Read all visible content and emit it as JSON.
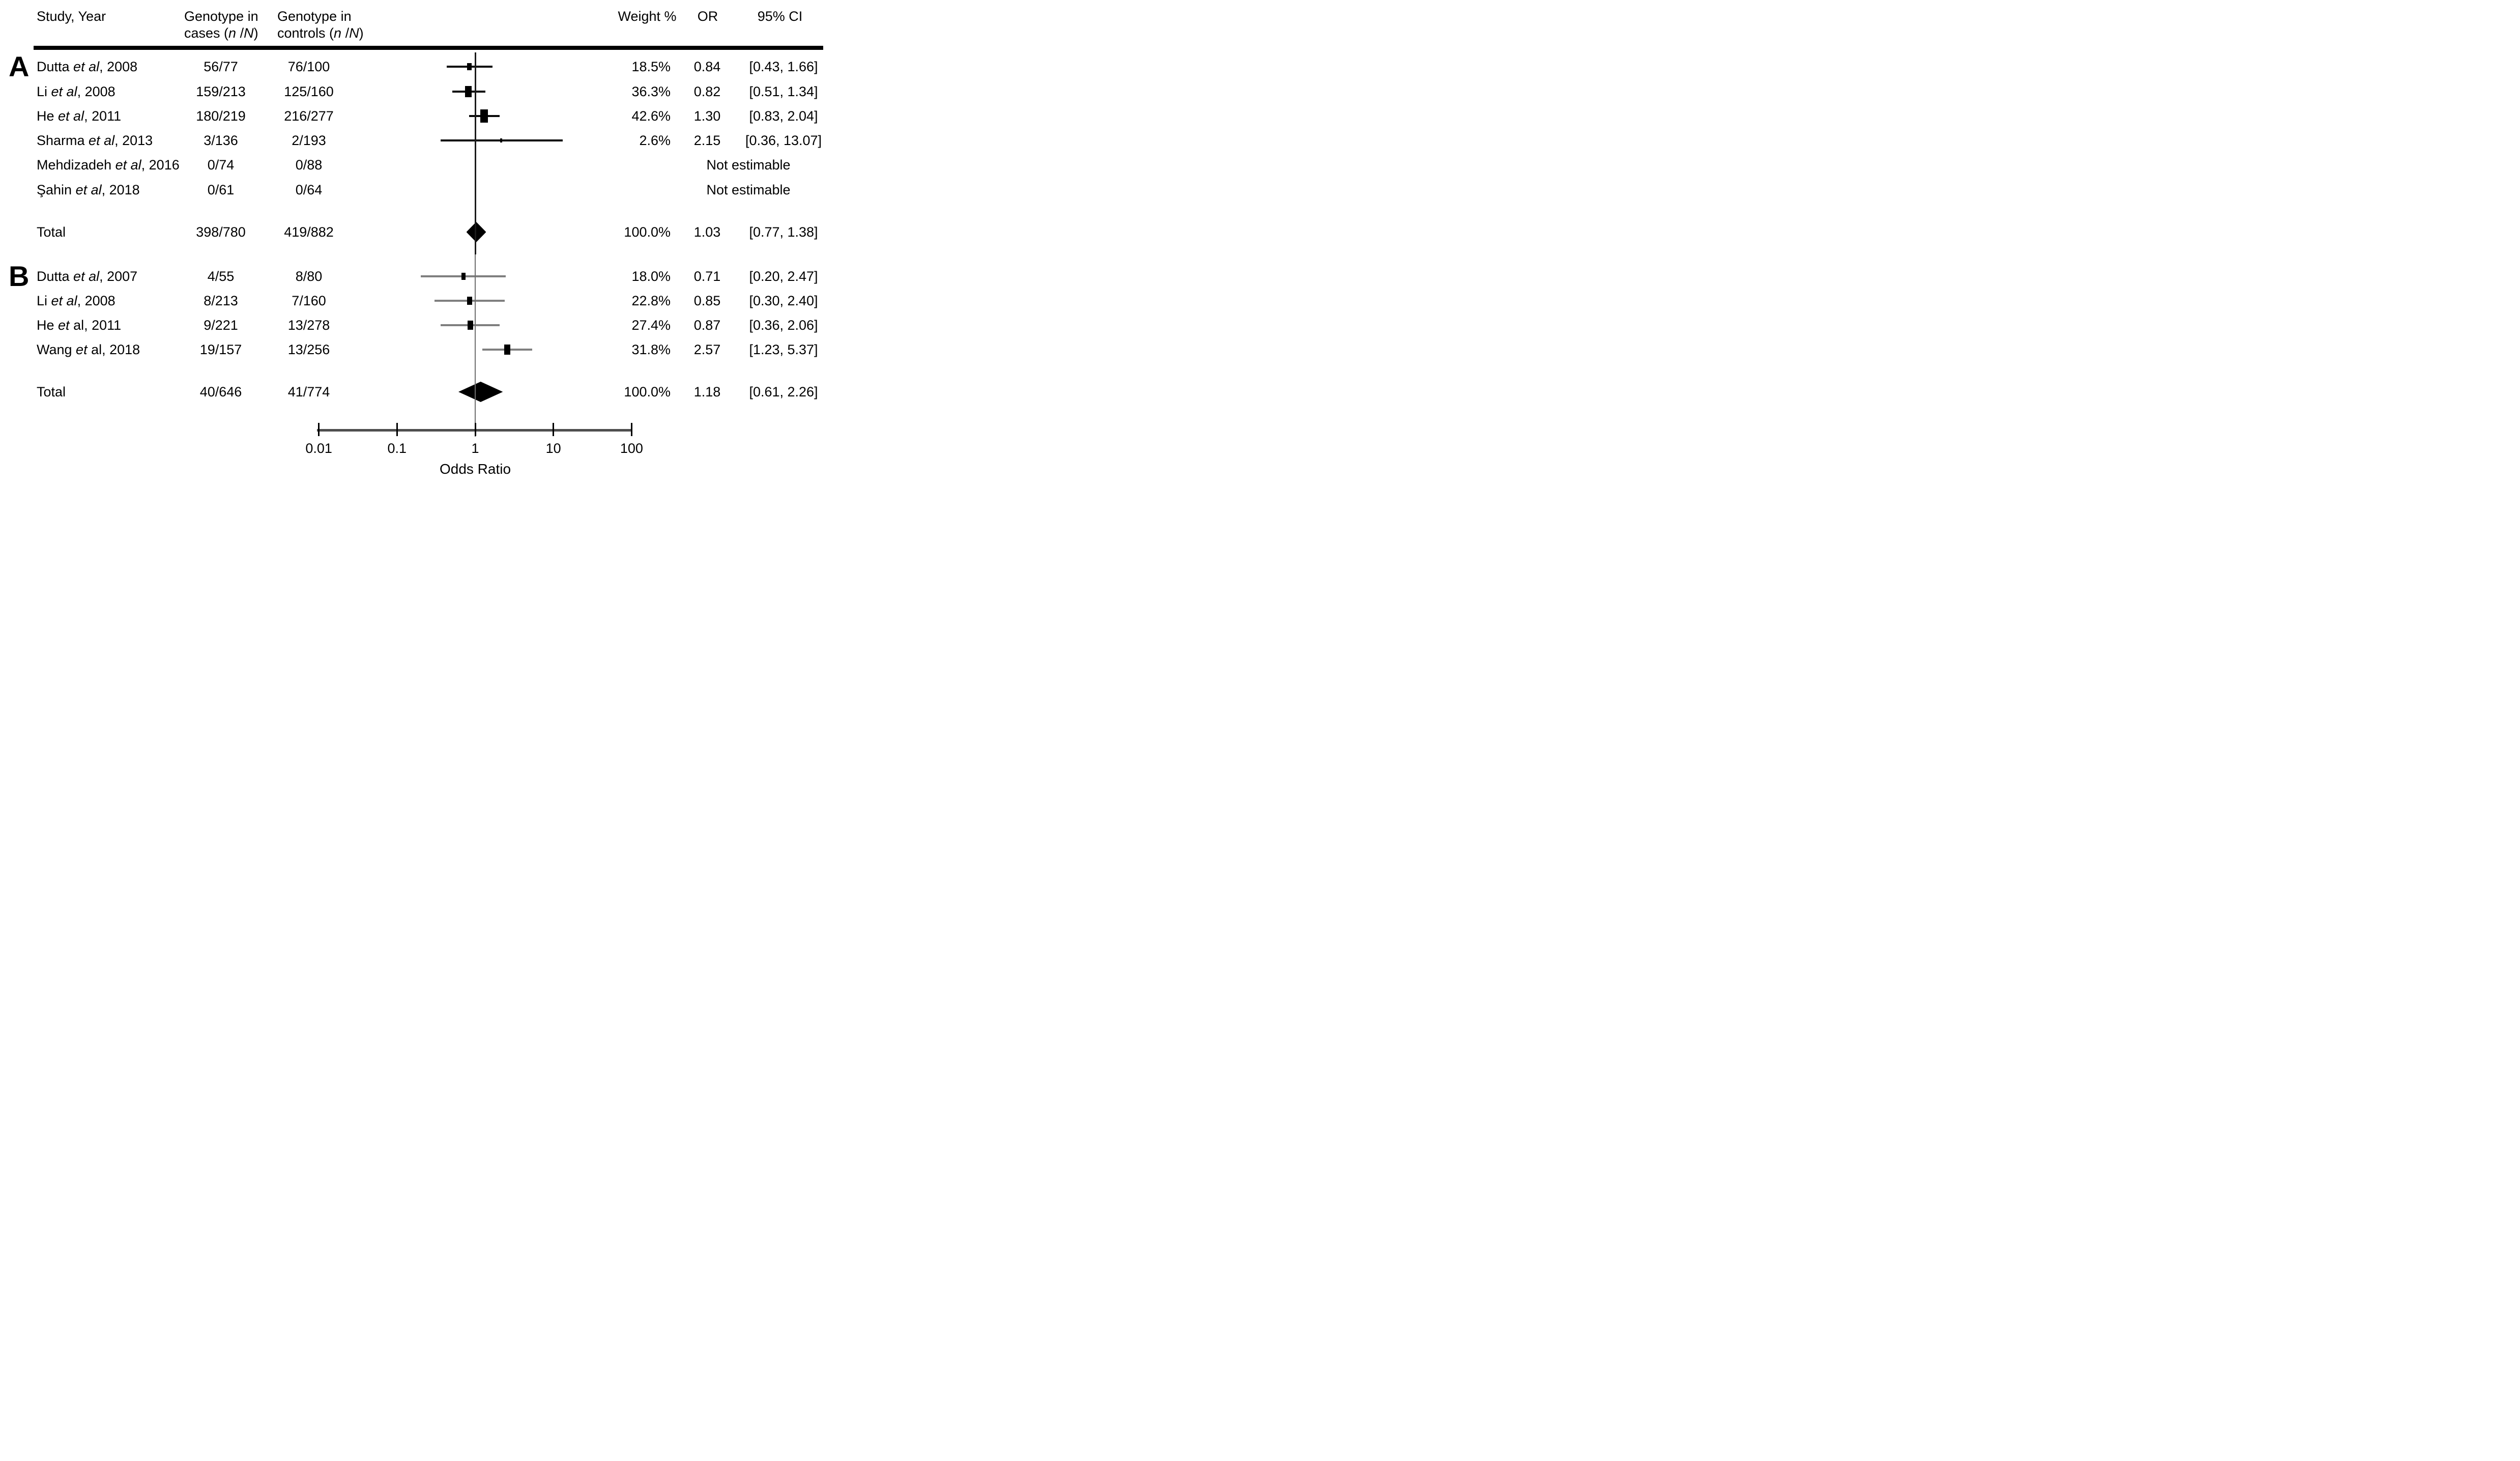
{
  "chart_data": {
    "type": "forest_plot",
    "title": "",
    "xlabel": "Odds Ratio",
    "axis": {
      "scale": "log10",
      "min": 0.01,
      "max": 100,
      "ticks": [
        0.01,
        0.1,
        1,
        10,
        100
      ],
      "tick_labels": [
        "0.01",
        "0.1",
        "1",
        "10",
        "100"
      ],
      "no_effect_line": 1
    },
    "header": {
      "study": "Study, Year",
      "cases_line1": [
        {
          "t": "Genotype in"
        }
      ],
      "cases_line2": [
        {
          "t": "cases ("
        },
        {
          "t": "n",
          "i": true
        },
        {
          "t": " /"
        },
        {
          "t": "N",
          "i": true
        },
        {
          "t": ")"
        }
      ],
      "controls_line1": [
        {
          "t": "Genotype in"
        }
      ],
      "controls_line2": [
        {
          "t": "controls ("
        },
        {
          "t": "n",
          "i": true
        },
        {
          "t": " /"
        },
        {
          "t": "N",
          "i": true
        },
        {
          "t": ")"
        }
      ],
      "weight": "Weight %",
      "or": "OR",
      "ci": "95% CI"
    },
    "sections": [
      {
        "label": "A",
        "rows": [
          {
            "study": [
              {
                "t": "Dutta "
              },
              {
                "t": "et al",
                "i": true
              },
              {
                "t": ", 2008"
              }
            ],
            "cases": "56/77",
            "controls": "76/100",
            "weight": "18.5%",
            "weight_val": 18.5,
            "or_text": "0.84",
            "ci_text": "[0.43, 1.66]",
            "or": 0.84,
            "lo": 0.43,
            "hi": 1.66
          },
          {
            "study": [
              {
                "t": "Li "
              },
              {
                "t": "et al",
                "i": true
              },
              {
                "t": ", 2008"
              }
            ],
            "cases": "159/213",
            "controls": "125/160",
            "weight": "36.3%",
            "weight_val": 36.3,
            "or_text": "0.82",
            "ci_text": "[0.51, 1.34]",
            "or": 0.82,
            "lo": 0.51,
            "hi": 1.34
          },
          {
            "study": [
              {
                "t": "He "
              },
              {
                "t": "et al",
                "i": true
              },
              {
                "t": ", 2011"
              }
            ],
            "cases": "180/219",
            "controls": "216/277",
            "weight": "42.6%",
            "weight_val": 42.6,
            "or_text": "1.30",
            "ci_text": "[0.83, 2.04]",
            "or": 1.3,
            "lo": 0.83,
            "hi": 2.04
          },
          {
            "study": [
              {
                "t": "Sharma "
              },
              {
                "t": "et al",
                "i": true
              },
              {
                "t": ", 2013"
              }
            ],
            "cases": "3/136",
            "controls": "2/193",
            "weight": "2.6%",
            "weight_val": 2.6,
            "or_text": "2.15",
            "ci_text": "[0.36,  13.07]",
            "or": 2.15,
            "lo": 0.36,
            "hi": 13.07
          },
          {
            "study": [
              {
                "t": "Mehdizadeh "
              },
              {
                "t": "et al",
                "i": true
              },
              {
                "t": ", 2016"
              }
            ],
            "cases": "0/74",
            "controls": "0/88",
            "note": "Not estimable"
          },
          {
            "study": [
              {
                "t": "Şahin "
              },
              {
                "t": "et al",
                "i": true
              },
              {
                "t": ", 2018"
              }
            ],
            "cases": "0/61",
            "controls": "0/64",
            "note": "Not estimable"
          }
        ],
        "total": {
          "label": "Total",
          "cases": "398/780",
          "controls": "419/882",
          "weight": "100.0%",
          "or_text": "1.03",
          "ci_text": "[0.77, 1.38]",
          "or": 1.03,
          "lo": 0.77,
          "hi": 1.38
        }
      },
      {
        "label": "B",
        "rows": [
          {
            "study": [
              {
                "t": "Dutta "
              },
              {
                "t": "et al",
                "i": true
              },
              {
                "t": ", 2007"
              }
            ],
            "cases": "4/55",
            "controls": "8/80",
            "weight": "18.0%",
            "weight_val": 18.0,
            "or_text": "0.71",
            "ci_text": "[0.20, 2.47]",
            "or": 0.71,
            "lo": 0.2,
            "hi": 2.47
          },
          {
            "study": [
              {
                "t": "Li "
              },
              {
                "t": "et al",
                "i": true
              },
              {
                "t": ", 2008"
              }
            ],
            "cases": "8/213",
            "controls": "7/160",
            "weight": "22.8%",
            "weight_val": 22.8,
            "or_text": "0.85",
            "ci_text": "[0.30, 2.40]",
            "or": 0.85,
            "lo": 0.3,
            "hi": 2.4
          },
          {
            "study": [
              {
                "t": "He "
              },
              {
                "t": "et",
                "i": true
              },
              {
                "t": " al, 2011"
              }
            ],
            "cases": "9/221",
            "controls": "13/278",
            "weight": "27.4%",
            "weight_val": 27.4,
            "or_text": "0.87",
            "ci_text": "[0.36, 2.06]",
            "or": 0.87,
            "lo": 0.36,
            "hi": 2.06
          },
          {
            "study": [
              {
                "t": "Wang "
              },
              {
                "t": "et",
                "i": true
              },
              {
                "t": " al, 2018"
              }
            ],
            "cases": "19/157",
            "controls": "13/256",
            "weight": "31.8%",
            "weight_val": 31.8,
            "or_text": "2.57",
            "ci_text": "[1.23, 5.37]",
            "or": 2.57,
            "lo": 1.23,
            "hi": 5.37
          }
        ],
        "total": {
          "label": "Total",
          "cases": "40/646",
          "controls": "41/774",
          "weight": "100.0%",
          "or_text": "1.18",
          "ci_text": "[0.61, 2.26]",
          "or": 1.18,
          "lo": 0.61,
          "hi": 2.26
        }
      }
    ],
    "colors": {
      "text": "#000000",
      "marker": "#000000",
      "ci_line_section_a": "#0a0a0a",
      "ci_line_section_b": "#7f7f7f",
      "no_effect_line_top": "#1a1a1a",
      "no_effect_line_bottom": "#6e6e6e",
      "axis_line": "#4f4f4f",
      "background": "#ffffff"
    }
  }
}
